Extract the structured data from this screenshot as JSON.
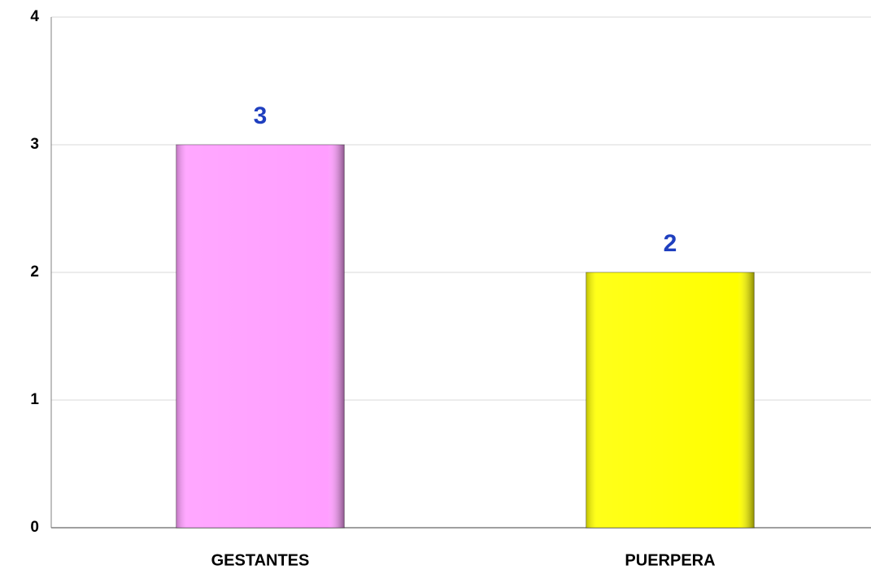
{
  "chart_data": {
    "type": "bar",
    "categories": [
      "GESTANTES",
      "PUERPERA"
    ],
    "values": [
      3,
      2
    ],
    "colors": [
      "#ff9eff",
      "#ffff00"
    ],
    "value_label_color": "#1f3fbf",
    "ylim": [
      0,
      4
    ],
    "yticks": [
      0,
      1,
      2,
      3,
      4
    ],
    "grid": true
  }
}
